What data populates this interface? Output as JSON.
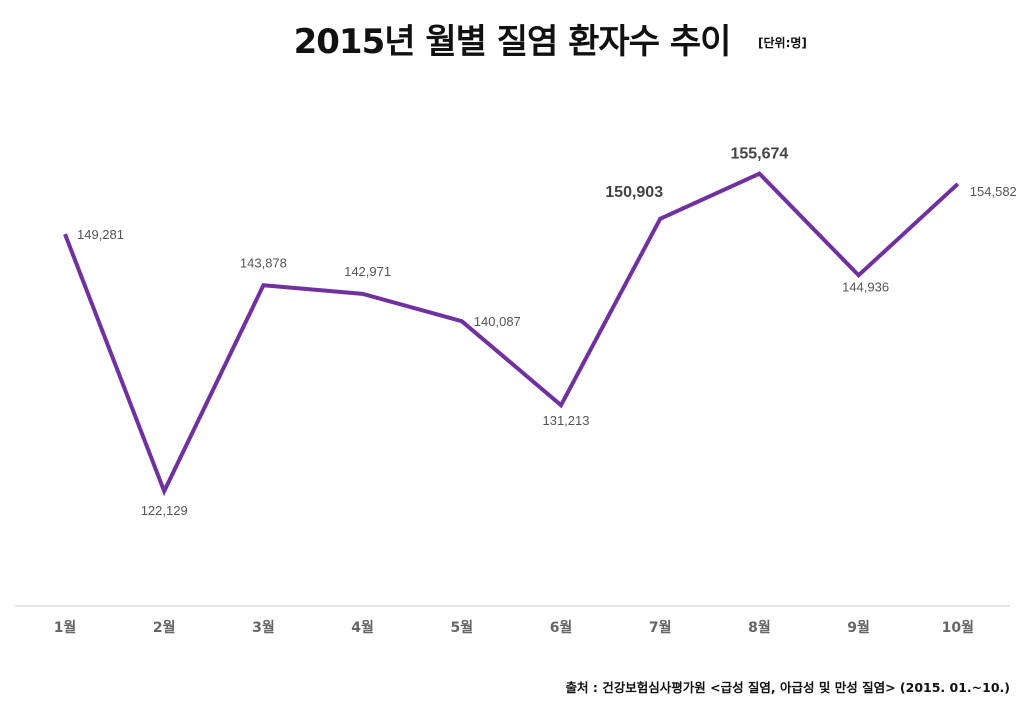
{
  "chart_data": {
    "type": "line",
    "title": "2015년 월별 질염 환자수 추이",
    "unit_note": "[단위:명]",
    "source": "출처 : 건강보험심사평가원 <급성 질염, 아급성 및 만성 질염> (2015. 01.~10.)",
    "categories": [
      "1월",
      "2월",
      "3월",
      "4월",
      "5월",
      "6월",
      "7월",
      "8월",
      "9월",
      "10월"
    ],
    "values": [
      149281,
      122129,
      143878,
      142971,
      140087,
      131213,
      150903,
      155674,
      144936,
      154582
    ],
    "data_labels": [
      "149,281",
      "122,129",
      "143,878",
      "142,971",
      "140,087",
      "131,213",
      "150,903",
      "155,674",
      "144,936",
      "154,582"
    ],
    "highlighted": [
      "7월",
      "8월"
    ],
    "ylim": [
      110000,
      170000
    ],
    "grid": false,
    "line_color": "#7030a0"
  }
}
